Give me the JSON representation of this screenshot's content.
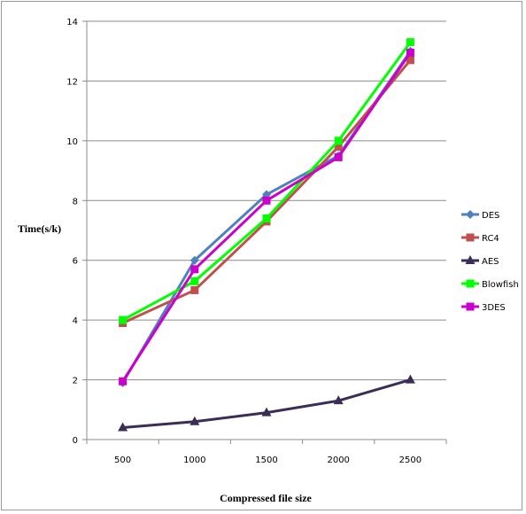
{
  "chart_data": {
    "type": "line",
    "title": "",
    "xlabel": "Compressed file size",
    "ylabel": "Time(s/k)",
    "categories": [
      "500",
      "1000",
      "1500",
      "2000",
      "2500"
    ],
    "ylim": [
      0,
      14
    ],
    "yticks": [
      0,
      2,
      4,
      6,
      8,
      10,
      12,
      14
    ],
    "grid": true,
    "legend_position": "right",
    "series": [
      {
        "name": "DES",
        "color": "#4f81bd",
        "marker": "diamond",
        "values": [
          1.9,
          6.0,
          8.2,
          9.5,
          13.0
        ]
      },
      {
        "name": "RC4",
        "color": "#c0504d",
        "marker": "square",
        "values": [
          3.9,
          5.0,
          7.3,
          9.8,
          12.7
        ]
      },
      {
        "name": "AES",
        "color": "#3b2d55",
        "marker": "triangle",
        "values": [
          0.4,
          0.6,
          0.9,
          1.3,
          2.0
        ]
      },
      {
        "name": "Blowfish",
        "color": "#00ff00",
        "marker": "square",
        "values": [
          4.0,
          5.3,
          7.4,
          10.0,
          13.3
        ]
      },
      {
        "name": "3DES",
        "color": "#cc00cc",
        "marker": "square",
        "values": [
          1.95,
          5.7,
          8.0,
          9.45,
          12.95
        ]
      }
    ]
  }
}
